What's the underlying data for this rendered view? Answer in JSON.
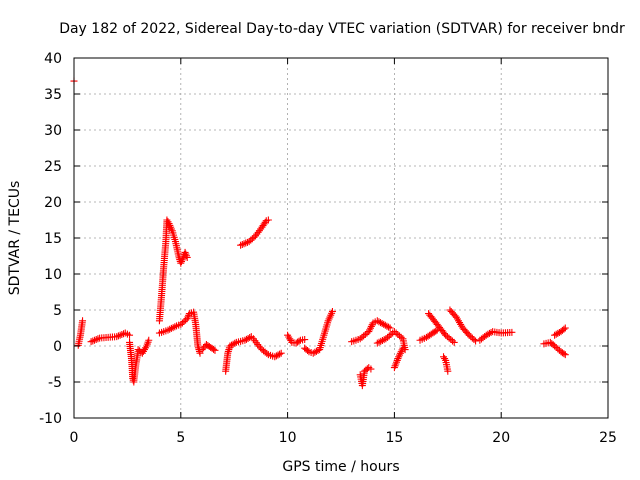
{
  "chart_data": {
    "type": "scatter",
    "title": "Day 182 of 2022, Sidereal Day-to-day VTEC variation (SDTVAR) for receiver bndr",
    "xlabel": "GPS time / hours",
    "ylabel": "SDTVAR / TECUs",
    "xlim": [
      0,
      25
    ],
    "ylim": [
      -10,
      40
    ],
    "xticks": [
      0,
      5,
      10,
      15,
      20,
      25
    ],
    "yticks": [
      -10,
      -5,
      0,
      5,
      10,
      15,
      20,
      25,
      30,
      35,
      40
    ],
    "xtick_labels": [
      "0",
      "5",
      "10",
      "15",
      "20",
      "25"
    ],
    "ytick_labels": [
      "-10",
      "-5",
      "0",
      "5",
      "10",
      "15",
      "20",
      "25",
      "30",
      "35",
      "40"
    ],
    "grid": true,
    "marker": "plus",
    "color": "#ff0000",
    "segments": [
      [
        [
          0.0,
          36.8
        ]
      ],
      [
        [
          0.2,
          0.1
        ],
        [
          0.3,
          1.5
        ],
        [
          0.4,
          3.5
        ]
      ],
      [
        [
          0.8,
          0.6
        ],
        [
          1.2,
          1.1
        ],
        [
          1.6,
          1.2
        ],
        [
          2.0,
          1.3
        ],
        [
          2.4,
          1.8
        ],
        [
          2.6,
          1.5
        ]
      ],
      [
        [
          2.6,
          0.5
        ],
        [
          2.7,
          -2.0
        ],
        [
          2.75,
          -4.5
        ],
        [
          2.8,
          -5.0
        ],
        [
          2.9,
          -2.5
        ],
        [
          3.0,
          -0.8
        ]
      ],
      [
        [
          3.0,
          -0.5
        ],
        [
          3.2,
          -1.0
        ],
        [
          3.4,
          0.0
        ],
        [
          3.5,
          0.8
        ]
      ],
      [
        [
          4.0,
          1.8
        ],
        [
          4.4,
          2.2
        ],
        [
          4.8,
          2.8
        ],
        [
          5.0,
          3.0
        ],
        [
          5.3,
          3.8
        ],
        [
          5.4,
          4.5
        ],
        [
          5.6,
          4.7
        ],
        [
          5.7,
          3.0
        ],
        [
          5.8,
          0.0
        ],
        [
          5.9,
          -1.0
        ]
      ],
      [
        [
          4.0,
          3.5
        ],
        [
          4.1,
          7.0
        ],
        [
          4.2,
          11.0
        ],
        [
          4.3,
          14.5
        ],
        [
          4.35,
          17.5
        ],
        [
          4.45,
          17.0
        ],
        [
          4.6,
          16.0
        ],
        [
          4.75,
          14.5
        ],
        [
          4.9,
          12.5
        ],
        [
          5.0,
          11.5
        ],
        [
          5.1,
          12.2
        ],
        [
          5.2,
          13.0
        ],
        [
          5.3,
          12.3
        ]
      ],
      [
        [
          6.0,
          -0.5
        ],
        [
          6.2,
          0.2
        ],
        [
          6.4,
          -0.2
        ],
        [
          6.6,
          -0.6
        ]
      ],
      [
        [
          7.1,
          -3.5
        ],
        [
          7.2,
          -1.0
        ],
        [
          7.3,
          0.0
        ],
        [
          7.6,
          0.5
        ],
        [
          8.0,
          0.8
        ],
        [
          8.3,
          1.3
        ]
      ],
      [
        [
          7.8,
          14.0
        ],
        [
          8.2,
          14.5
        ],
        [
          8.5,
          15.3
        ],
        [
          8.8,
          16.5
        ],
        [
          9.0,
          17.4
        ],
        [
          9.1,
          17.5
        ]
      ],
      [
        [
          8.4,
          1.0
        ],
        [
          8.6,
          0.2
        ],
        [
          8.8,
          -0.5
        ],
        [
          9.1,
          -1.2
        ],
        [
          9.4,
          -1.5
        ],
        [
          9.7,
          -1.0
        ]
      ],
      [
        [
          10.0,
          1.5
        ],
        [
          10.2,
          0.5
        ],
        [
          10.4,
          0.4
        ],
        [
          10.6,
          0.8
        ],
        [
          10.8,
          0.9
        ]
      ],
      [
        [
          10.8,
          -0.3
        ],
        [
          11.0,
          -0.8
        ],
        [
          11.2,
          -1.0
        ],
        [
          11.5,
          -0.5
        ],
        [
          11.7,
          1.5
        ],
        [
          11.9,
          3.5
        ],
        [
          12.1,
          4.8
        ]
      ],
      [
        [
          13.0,
          0.6
        ],
        [
          13.4,
          1.0
        ],
        [
          13.8,
          2.0
        ],
        [
          14.0,
          3.2
        ],
        [
          14.2,
          3.5
        ],
        [
          14.5,
          3.0
        ],
        [
          14.8,
          2.5
        ]
      ],
      [
        [
          13.4,
          -4.0
        ],
        [
          13.5,
          -5.5
        ],
        [
          13.6,
          -3.5
        ],
        [
          13.8,
          -3.0
        ],
        [
          13.9,
          -3.2
        ]
      ],
      [
        [
          14.2,
          0.4
        ],
        [
          14.6,
          1.0
        ],
        [
          15.0,
          2.0
        ],
        [
          15.4,
          1.0
        ],
        [
          15.5,
          -0.5
        ]
      ],
      [
        [
          15.0,
          -3.0
        ],
        [
          15.2,
          -1.5
        ],
        [
          15.4,
          -0.3
        ]
      ],
      [
        [
          16.2,
          0.8
        ],
        [
          16.5,
          1.2
        ],
        [
          16.8,
          1.8
        ],
        [
          17.0,
          2.2
        ]
      ],
      [
        [
          16.6,
          4.5
        ],
        [
          17.0,
          3.0
        ],
        [
          17.4,
          1.5
        ],
        [
          17.8,
          0.5
        ]
      ],
      [
        [
          17.3,
          -1.5
        ],
        [
          17.4,
          -2.0
        ],
        [
          17.5,
          -3.5
        ]
      ],
      [
        [
          17.6,
          5.0
        ],
        [
          17.9,
          4.0
        ],
        [
          18.2,
          2.5
        ],
        [
          18.5,
          1.5
        ],
        [
          18.8,
          0.7
        ]
      ],
      [
        [
          19.0,
          0.8
        ],
        [
          19.3,
          1.5
        ],
        [
          19.6,
          2.0
        ],
        [
          20.0,
          1.8
        ],
        [
          20.5,
          1.9
        ]
      ],
      [
        [
          22.0,
          0.3
        ],
        [
          22.3,
          0.5
        ],
        [
          22.5,
          0.0
        ],
        [
          22.8,
          -0.8
        ],
        [
          23.0,
          -1.2
        ]
      ],
      [
        [
          22.5,
          1.5
        ],
        [
          22.8,
          2.0
        ],
        [
          23.0,
          2.5
        ]
      ]
    ]
  }
}
